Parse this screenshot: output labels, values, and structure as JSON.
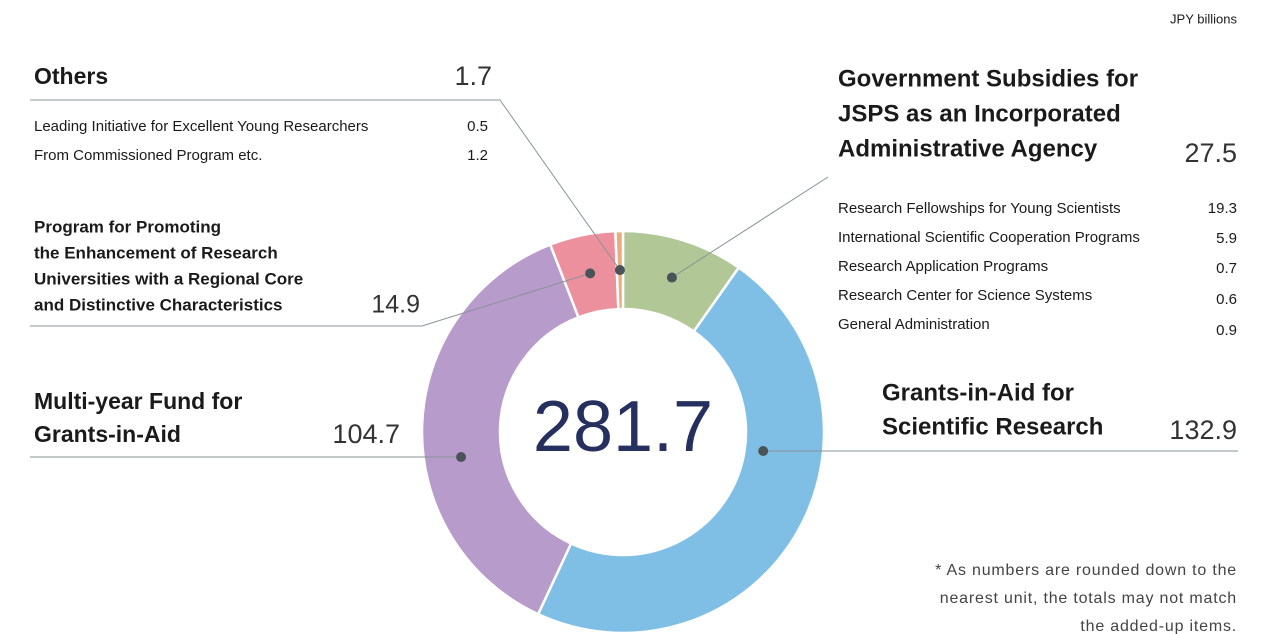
{
  "chart_data": {
    "type": "donut",
    "unit": "JPY billions",
    "total": 281.7,
    "categories": [
      [
        "Government Subsidies for",
        "JSPS as an Incorporated",
        "Administrative Agency"
      ],
      [
        "Grants-in-Aid for",
        "Scientific Research"
      ],
      [
        "Multi-year Fund for",
        "Grants-in-Aid"
      ],
      [
        "Program for Promoting",
        "the Enhancement of Research",
        "Universities with a Regional Core",
        "and Distinctive Characteristics"
      ],
      [
        "Others"
      ]
    ],
    "values": [
      27.5,
      132.9,
      104.7,
      14.9,
      1.7
    ],
    "colors": [
      "#b1c795",
      "#7fbfe6",
      "#b79bca",
      "#ec909d",
      "#e8ad7f"
    ],
    "subsidies_breakdown": {
      "labels": [
        "Research Fellowships for Young Scientists",
        "International Scientific Cooperation Programs",
        "Research Application Programs",
        "Research Center for Science Systems",
        "General Administration"
      ],
      "values": [
        19.3,
        5.9,
        0.7,
        0.6,
        0.9
      ]
    },
    "others_breakdown": {
      "labels": [
        "Leading Initiative for Excellent Young Researchers",
        "From Commissioned Program etc."
      ],
      "values": [
        0.5,
        1.2
      ]
    },
    "footnote": [
      "* As numbers are rounded down to the",
      "nearest unit, the totals may not match",
      "the added-up items."
    ]
  }
}
